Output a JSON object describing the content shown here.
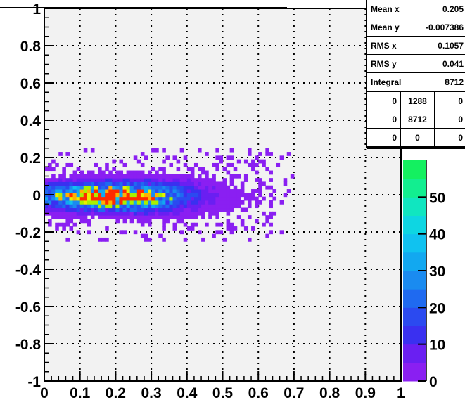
{
  "chart_data": {
    "type": "heatmap",
    "title": "",
    "xlabel": "",
    "ylabel": "",
    "xlim": [
      0,
      1
    ],
    "ylim": [
      -1,
      1
    ],
    "x_ticks": [
      "0",
      "0.1",
      "0.2",
      "0.3",
      "0.4",
      "0.5",
      "0.6",
      "0.7",
      "0.8",
      "0.9",
      "1"
    ],
    "y_ticks": [
      "-1",
      "-0.8",
      "-0.6",
      "-0.4",
      "-0.2",
      "0",
      "0.2",
      "0.4",
      "0.6",
      "0.8",
      "1"
    ],
    "grid": true,
    "colorbar": {
      "range": [
        0,
        60
      ],
      "ticks": [
        "0",
        "10",
        "20",
        "30",
        "40",
        "50"
      ],
      "colors": [
        "#8a1ff2",
        "#6a1ff2",
        "#3a30f0",
        "#2b4af0",
        "#1f6af0",
        "#1a8bf0",
        "#12a8f0",
        "#10c2f0",
        "#0ed6e2",
        "#10e6c0",
        "#12ee90",
        "#14f060"
      ]
    },
    "distribution": {
      "mean_x": 0.205,
      "mean_y": -0.007386,
      "rms_x": 0.1057,
      "rms_y": 0.041,
      "entries": 8712
    }
  },
  "stats": {
    "rows": [
      {
        "label": "Mean x",
        "value": "0.205"
      },
      {
        "label": "Mean y",
        "value": "-0.007386"
      },
      {
        "label": "RMS x",
        "value": "0.1057"
      },
      {
        "label": "RMS y",
        "value": "0.041"
      },
      {
        "label": "Integral",
        "value": "8712"
      }
    ],
    "grid": [
      [
        "0",
        "1288",
        "0"
      ],
      [
        "0",
        "8712",
        "0"
      ],
      [
        "0",
        "0",
        "0"
      ]
    ]
  }
}
